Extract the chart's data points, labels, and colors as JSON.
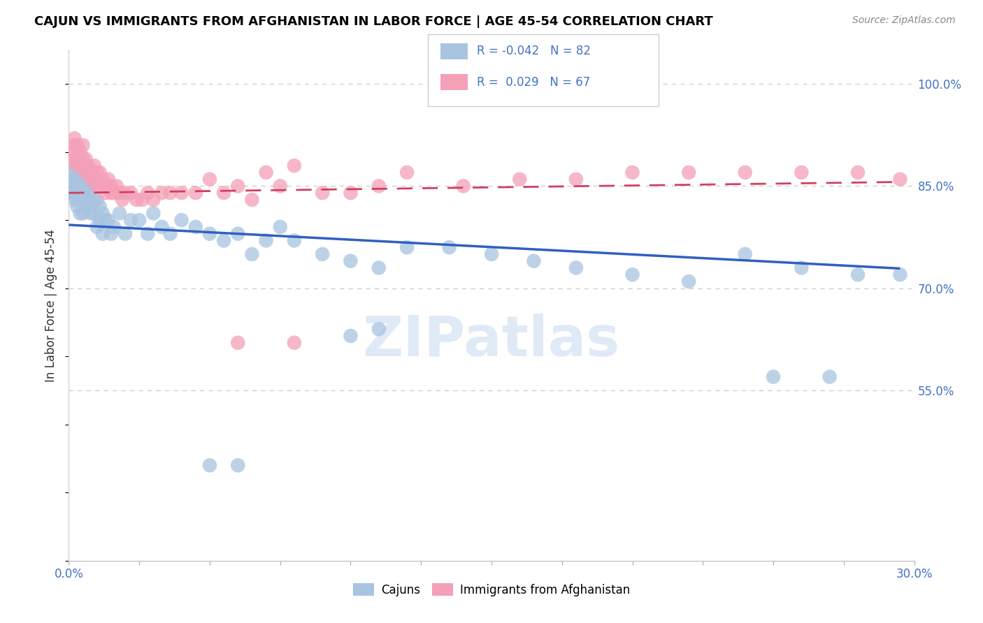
{
  "title": "CAJUN VS IMMIGRANTS FROM AFGHANISTAN IN LABOR FORCE | AGE 45-54 CORRELATION CHART",
  "source": "Source: ZipAtlas.com",
  "ylabel": "In Labor Force | Age 45-54",
  "xlim": [
    0.0,
    0.3
  ],
  "ylim": [
    0.3,
    1.05
  ],
  "yticks_right": [
    0.55,
    0.7,
    0.85,
    1.0
  ],
  "yticklabels_right": [
    "55.0%",
    "70.0%",
    "85.0%",
    "100.0%"
  ],
  "legend_r_cajun": "-0.042",
  "legend_n_cajun": "82",
  "legend_r_afghan": "0.029",
  "legend_n_afghan": "67",
  "blue_color": "#a8c4e0",
  "pink_color": "#f4a0b8",
  "blue_line_color": "#3060c0",
  "pink_line_color": "#d04060",
  "watermark": "ZIPatlas",
  "cajun_x": [
    0.001,
    0.001,
    0.001,
    0.002,
    0.002,
    0.002,
    0.002,
    0.003,
    0.003,
    0.003,
    0.003,
    0.003,
    0.004,
    0.004,
    0.004,
    0.004,
    0.004,
    0.005,
    0.005,
    0.005,
    0.005,
    0.005,
    0.005,
    0.006,
    0.006,
    0.006,
    0.006,
    0.007,
    0.007,
    0.007,
    0.008,
    0.008,
    0.008,
    0.009,
    0.009,
    0.01,
    0.01,
    0.011,
    0.011,
    0.012,
    0.012,
    0.013,
    0.014,
    0.015,
    0.016,
    0.018,
    0.02,
    0.022,
    0.025,
    0.028,
    0.03,
    0.033,
    0.036,
    0.04,
    0.045,
    0.05,
    0.055,
    0.06,
    0.065,
    0.07,
    0.075,
    0.08,
    0.09,
    0.1,
    0.11,
    0.12,
    0.135,
    0.15,
    0.165,
    0.18,
    0.2,
    0.22,
    0.24,
    0.26,
    0.28,
    0.295,
    0.25,
    0.27,
    0.1,
    0.11,
    0.05,
    0.06
  ],
  "cajun_y": [
    0.87,
    0.85,
    0.84,
    0.88,
    0.86,
    0.84,
    0.83,
    0.87,
    0.86,
    0.85,
    0.83,
    0.82,
    0.86,
    0.85,
    0.84,
    0.83,
    0.81,
    0.87,
    0.86,
    0.85,
    0.84,
    0.83,
    0.81,
    0.85,
    0.84,
    0.83,
    0.82,
    0.84,
    0.83,
    0.82,
    0.85,
    0.83,
    0.81,
    0.83,
    0.81,
    0.83,
    0.79,
    0.82,
    0.8,
    0.81,
    0.78,
    0.8,
    0.8,
    0.78,
    0.79,
    0.81,
    0.78,
    0.8,
    0.8,
    0.78,
    0.81,
    0.79,
    0.78,
    0.8,
    0.79,
    0.78,
    0.77,
    0.78,
    0.75,
    0.77,
    0.79,
    0.77,
    0.75,
    0.74,
    0.73,
    0.76,
    0.76,
    0.75,
    0.74,
    0.73,
    0.72,
    0.71,
    0.75,
    0.73,
    0.72,
    0.72,
    0.57,
    0.57,
    0.63,
    0.64,
    0.44,
    0.44
  ],
  "afghan_x": [
    0.001,
    0.001,
    0.002,
    0.002,
    0.003,
    0.003,
    0.003,
    0.004,
    0.004,
    0.005,
    0.005,
    0.005,
    0.006,
    0.006,
    0.006,
    0.007,
    0.007,
    0.008,
    0.008,
    0.009,
    0.009,
    0.01,
    0.01,
    0.011,
    0.011,
    0.012,
    0.013,
    0.013,
    0.014,
    0.015,
    0.015,
    0.016,
    0.017,
    0.018,
    0.019,
    0.02,
    0.022,
    0.024,
    0.026,
    0.028,
    0.03,
    0.033,
    0.036,
    0.04,
    0.045,
    0.05,
    0.055,
    0.06,
    0.065,
    0.07,
    0.075,
    0.08,
    0.09,
    0.1,
    0.11,
    0.12,
    0.14,
    0.16,
    0.18,
    0.2,
    0.22,
    0.24,
    0.26,
    0.28,
    0.295,
    0.06,
    0.08
  ],
  "afghan_y": [
    0.9,
    0.89,
    0.92,
    0.91,
    0.91,
    0.89,
    0.88,
    0.9,
    0.88,
    0.91,
    0.89,
    0.88,
    0.89,
    0.88,
    0.87,
    0.88,
    0.87,
    0.87,
    0.86,
    0.88,
    0.86,
    0.87,
    0.85,
    0.87,
    0.85,
    0.86,
    0.85,
    0.84,
    0.86,
    0.85,
    0.84,
    0.84,
    0.85,
    0.84,
    0.83,
    0.84,
    0.84,
    0.83,
    0.83,
    0.84,
    0.83,
    0.84,
    0.84,
    0.84,
    0.84,
    0.86,
    0.84,
    0.85,
    0.83,
    0.87,
    0.85,
    0.88,
    0.84,
    0.84,
    0.85,
    0.87,
    0.85,
    0.86,
    0.86,
    0.87,
    0.87,
    0.87,
    0.87,
    0.87,
    0.86,
    0.62,
    0.62
  ],
  "blue_line_x0": 0.0,
  "blue_line_x1": 0.295,
  "blue_line_y0": 0.793,
  "blue_line_y1": 0.729,
  "pink_line_x0": 0.0,
  "pink_line_x1": 0.295,
  "pink_line_y0": 0.84,
  "pink_line_y1": 0.856
}
